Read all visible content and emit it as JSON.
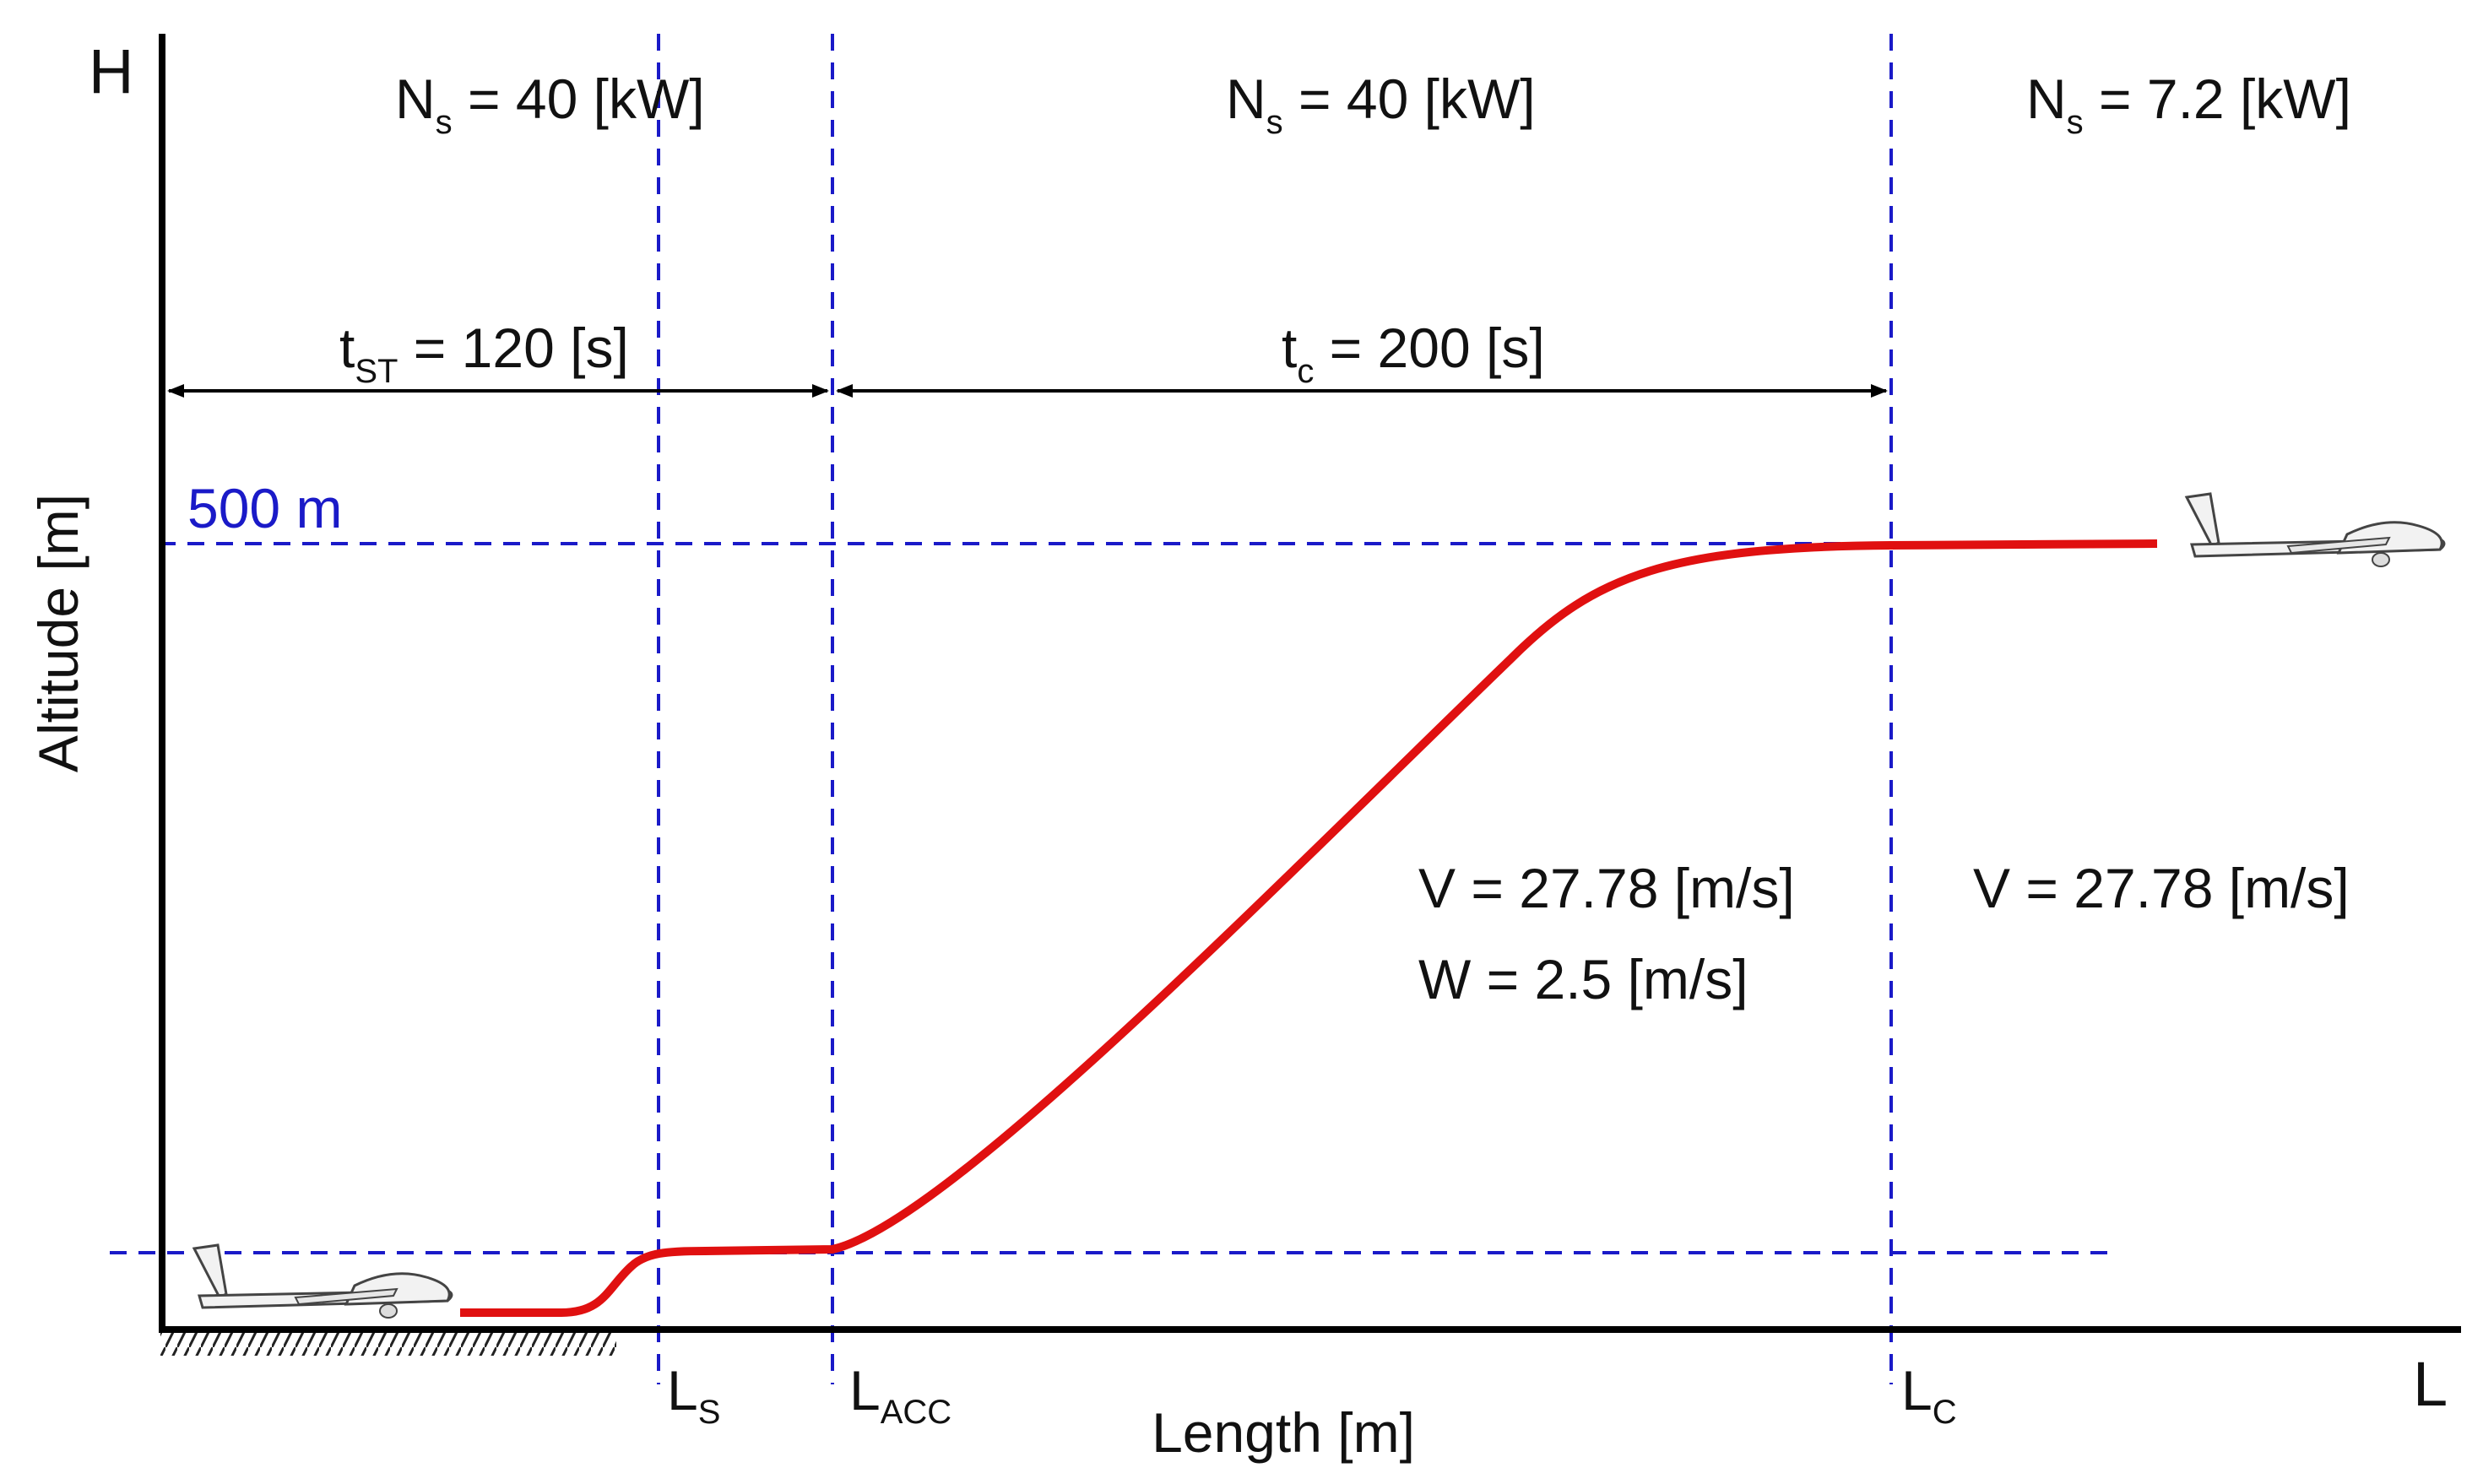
{
  "axes": {
    "y_letter": "H",
    "x_letter": "L",
    "y_label": "Altitude [m]",
    "x_label": "Length [m]"
  },
  "altitude_marker": {
    "text": "500 m",
    "value_m": 500
  },
  "power_segments": [
    {
      "symbol": "N",
      "subscript": "s",
      "text": " = 40 [kW]"
    },
    {
      "symbol": "N",
      "subscript": "s",
      "text": " = 40 [kW]"
    },
    {
      "symbol": "N",
      "subscript": "s",
      "text": " = 7.2 [kW]"
    }
  ],
  "time_spans": [
    {
      "symbol": "t",
      "subscript": "ST",
      "text": " = 120 [s]",
      "value_s": 120
    },
    {
      "symbol": "t",
      "subscript": "c",
      "text": " = 200 [s]",
      "value_s": 200
    }
  ],
  "climb_params": {
    "speed": "V = 27.78 [m/s]",
    "climb_rate": "W = 2.5 [m/s]"
  },
  "cruise_params": {
    "speed": "V = 27.78 [m/s]"
  },
  "markers": [
    {
      "symbol": "L",
      "subscript": "S"
    },
    {
      "symbol": "L",
      "subscript": "ACC"
    },
    {
      "symbol": "L",
      "subscript": "C"
    }
  ],
  "colors": {
    "trajectory": "#e01010",
    "guides": "#1a1ac8",
    "axes": "#000000",
    "glider": "#f2f2f2"
  }
}
